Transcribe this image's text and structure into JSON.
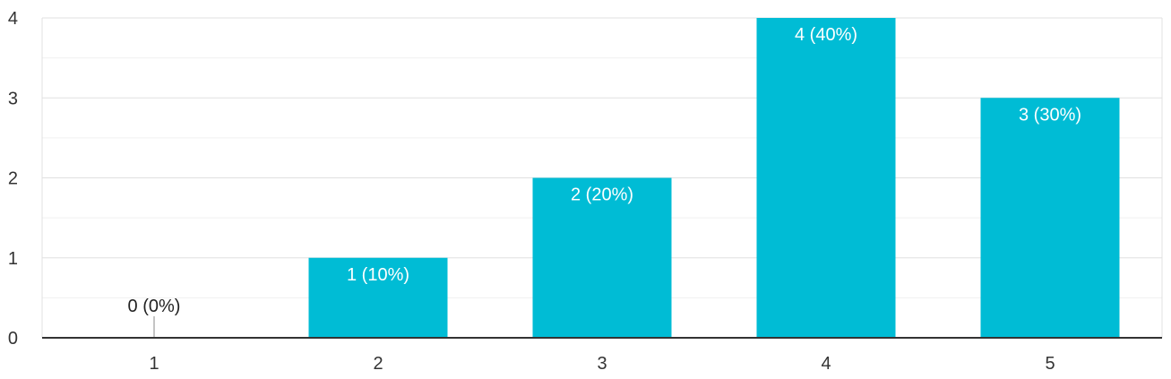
{
  "chart_data": {
    "type": "bar",
    "title": "",
    "xlabel": "",
    "ylabel": "",
    "categories": [
      "1",
      "2",
      "3",
      "4",
      "5"
    ],
    "values": [
      0,
      1,
      2,
      4,
      3
    ],
    "data_labels": [
      "0 (0%)",
      "1 (10%)",
      "2 (20%)",
      "4 (40%)",
      "3 (30%)"
    ],
    "ylim": [
      0,
      4
    ],
    "y_ticks": [
      "0",
      "1",
      "2",
      "3",
      "4"
    ],
    "grid": true,
    "minor_grid": true,
    "legend": "none",
    "colors": {
      "bar": "#00bcd5",
      "grid_major": "#e0e0e0",
      "grid_minor": "#f0f0f0",
      "axis": "#333333"
    }
  }
}
